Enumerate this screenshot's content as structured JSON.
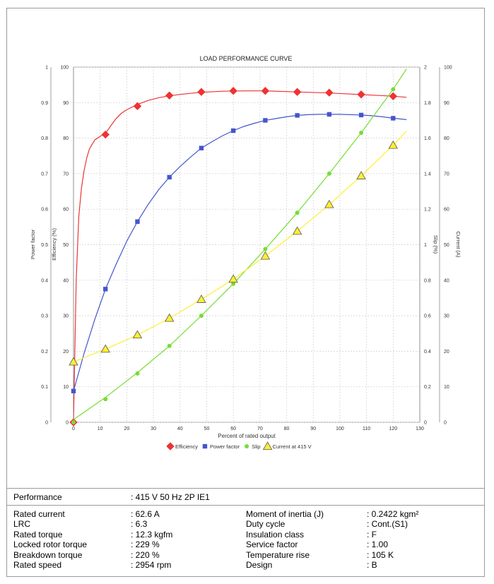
{
  "chart_data": {
    "type": "line",
    "title": "LOAD PERFORMANCE CURVE",
    "xlabel": "Percent of rated output",
    "xlim": [
      0,
      130
    ],
    "x_ticks": [
      "0",
      "10",
      "20",
      "30",
      "40",
      "50",
      "60",
      "70",
      "80",
      "90",
      "100",
      "110",
      "120",
      "130"
    ],
    "axes": {
      "power_factor": {
        "label": "Power factor",
        "range": [
          0,
          1
        ],
        "ticks": [
          "0",
          "0.1",
          "0.2",
          "0.3",
          "0.4",
          "0.5",
          "0.6",
          "0.7",
          "0.8",
          "0.9",
          "1"
        ]
      },
      "efficiency": {
        "label": "Efficiency (%)",
        "range": [
          0,
          100
        ],
        "ticks": [
          "0",
          "10",
          "20",
          "30",
          "40",
          "50",
          "60",
          "70",
          "80",
          "90",
          "100"
        ]
      },
      "slip": {
        "label": "Slip (%)",
        "range": [
          0,
          2
        ],
        "ticks": [
          "0",
          "0.2",
          "0.4",
          "0.6",
          "0.8",
          "1",
          "1.2",
          "1.4",
          "1.6",
          "1.8",
          "2"
        ]
      },
      "current": {
        "label": "Current (A)",
        "range": [
          0,
          100
        ],
        "ticks": [
          "0",
          "10",
          "20",
          "30",
          "40",
          "50",
          "60",
          "70",
          "80",
          "90",
          "100"
        ]
      }
    },
    "grid": true,
    "legend_position": "bottom",
    "series": [
      {
        "name": "Efficiency",
        "axis": "efficiency",
        "color": "#ee3333",
        "marker": "diamond",
        "x": [
          0,
          12,
          24,
          36,
          48,
          60,
          72,
          84,
          96,
          108,
          120
        ],
        "y": [
          0,
          81,
          89,
          92,
          93,
          93.3,
          93.3,
          93,
          92.8,
          92.3,
          91.8
        ],
        "curve_x": [
          0,
          1,
          2,
          3,
          4,
          5,
          6,
          8,
          10,
          12,
          14,
          16,
          18,
          20,
          24,
          28,
          32,
          36,
          40,
          48,
          56,
          64,
          72,
          80,
          88,
          96,
          104,
          112,
          120,
          125
        ],
        "curve_y": [
          0,
          40,
          58,
          66,
          71,
          74.5,
          77,
          79.5,
          80.5,
          81.3,
          83.5,
          85.5,
          87,
          88,
          89.5,
          90.6,
          91.4,
          91.9,
          92.3,
          92.9,
          93.2,
          93.3,
          93.3,
          93.1,
          92.9,
          92.7,
          92.4,
          92.1,
          91.8,
          91.5
        ]
      },
      {
        "name": "Power factor",
        "axis": "power_factor",
        "color": "#4455cc",
        "marker": "square",
        "x": [
          0,
          12,
          24,
          36,
          48,
          60,
          72,
          84,
          96,
          108,
          120
        ],
        "y": [
          0.088,
          0.375,
          0.565,
          0.69,
          0.772,
          0.821,
          0.85,
          0.864,
          0.867,
          0.865,
          0.856
        ],
        "curve_x": [
          0,
          4,
          8,
          12,
          16,
          20,
          24,
          28,
          32,
          36,
          40,
          44,
          48,
          52,
          56,
          60,
          64,
          68,
          72,
          76,
          80,
          84,
          88,
          92,
          96,
          100,
          104,
          108,
          112,
          116,
          120,
          125
        ],
        "curve_y": [
          0.088,
          0.195,
          0.29,
          0.375,
          0.445,
          0.51,
          0.565,
          0.613,
          0.655,
          0.69,
          0.72,
          0.747,
          0.772,
          0.79,
          0.807,
          0.821,
          0.833,
          0.842,
          0.85,
          0.855,
          0.86,
          0.864,
          0.866,
          0.867,
          0.867,
          0.867,
          0.866,
          0.865,
          0.863,
          0.86,
          0.856,
          0.852
        ]
      },
      {
        "name": "Slip",
        "axis": "slip",
        "color": "#77dd33",
        "marker": "circle",
        "x": [
          0,
          12,
          24,
          36,
          48,
          60,
          72,
          84,
          96,
          108,
          120
        ],
        "y": [
          0,
          0.13,
          0.275,
          0.43,
          0.6,
          0.78,
          0.975,
          1.18,
          1.4,
          1.63,
          1.875
        ],
        "curve_x": [
          0,
          12,
          24,
          36,
          48,
          60,
          72,
          84,
          96,
          108,
          120,
          125
        ],
        "curve_y": [
          0.015,
          0.14,
          0.28,
          0.43,
          0.6,
          0.78,
          0.975,
          1.18,
          1.4,
          1.63,
          1.875,
          1.99
        ]
      },
      {
        "name": "Current at 415 V",
        "axis": "current",
        "color": "#ffee33",
        "marker": "triangle",
        "x": [
          0,
          12,
          24,
          36,
          48,
          60,
          72,
          84,
          96,
          108,
          120
        ],
        "y": [
          17,
          20.6,
          24.6,
          29.3,
          34.6,
          40.3,
          46.8,
          53.8,
          61.3,
          69.4,
          78
        ],
        "curve_x": [
          0,
          12,
          24,
          36,
          48,
          60,
          72,
          84,
          96,
          108,
          120,
          125
        ],
        "curve_y": [
          17,
          20.6,
          24.6,
          29.3,
          34.6,
          40.3,
          46.8,
          53.8,
          61.3,
          69.4,
          78,
          82
        ]
      }
    ]
  },
  "specs": {
    "performance": {
      "label": "Performance",
      "value": ": 415 V 50 Hz 2P IE1"
    },
    "left": [
      {
        "label": "Rated current",
        "value": ": 62.6 A"
      },
      {
        "label": "LRC",
        "value": ": 6.3"
      },
      {
        "label": "Rated torque",
        "value": ": 12.3 kgfm"
      },
      {
        "label": "Locked rotor torque",
        "value": ": 229 %"
      },
      {
        "label": "Breakdown torque",
        "value": ": 220 %"
      },
      {
        "label": "Rated speed",
        "value": ": 2954 rpm"
      }
    ],
    "right": [
      {
        "label": "Moment of inertia (J)",
        "value": ": 0.2422 kgm²"
      },
      {
        "label": "Duty cycle",
        "value": ": Cont.(S1)"
      },
      {
        "label": "Insulation class",
        "value": ": F"
      },
      {
        "label": "Service factor",
        "value": ": 1.00"
      },
      {
        "label": "Temperature rise",
        "value": ": 105 K"
      },
      {
        "label": "Design",
        "value": ": B"
      }
    ]
  }
}
